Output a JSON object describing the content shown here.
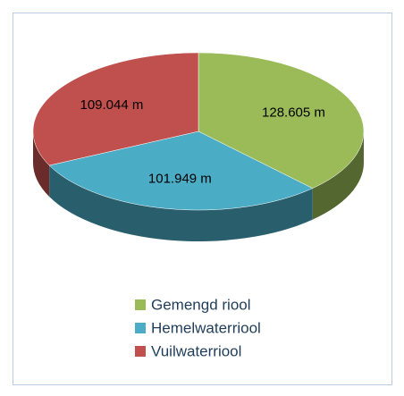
{
  "chart_data": {
    "type": "pie",
    "categories": [
      "Gemengd riool",
      "Hemelwaterriool",
      "Vuilwaterriool"
    ],
    "values": [
      128605,
      101949,
      109044
    ],
    "value_labels": [
      "128.605  m",
      "101.949  m",
      "109.044  m"
    ],
    "colors": [
      "#9bbb59",
      "#4bacc6",
      "#c0504d"
    ],
    "legend": "bottom"
  }
}
